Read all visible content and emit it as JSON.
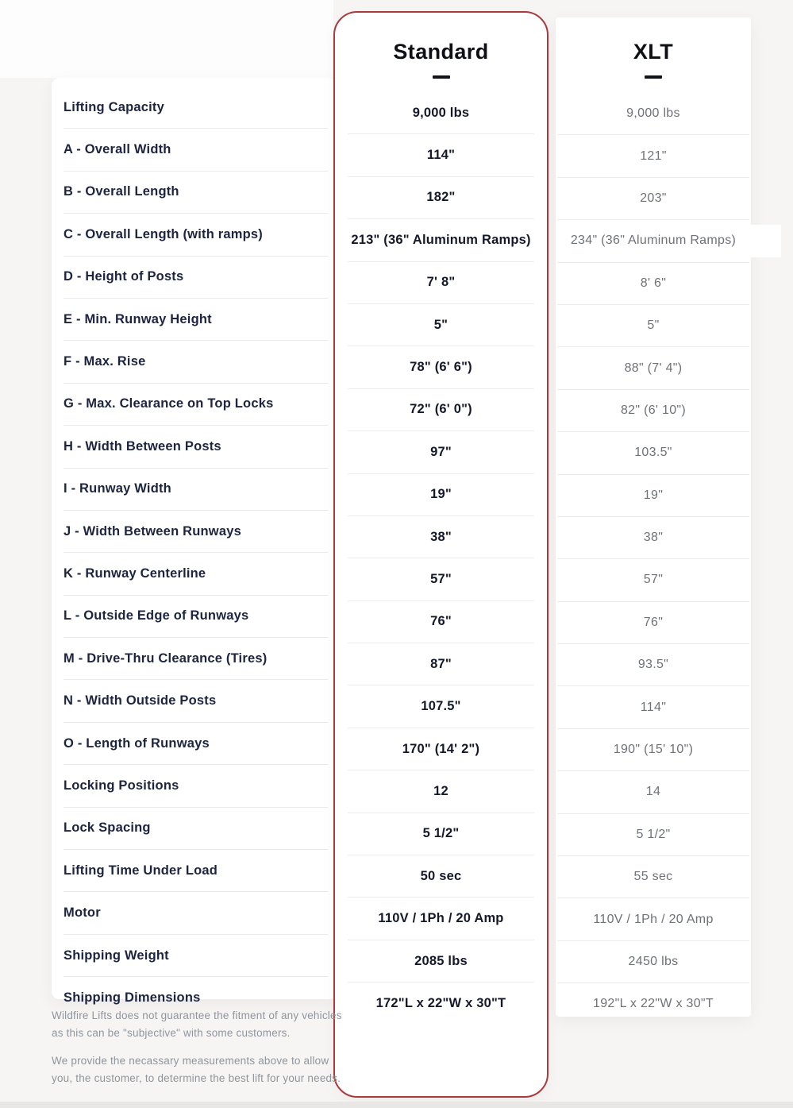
{
  "columns": {
    "standard": {
      "title": "Standard"
    },
    "xlt": {
      "title": "XLT"
    }
  },
  "rows": [
    {
      "label": "Lifting Capacity",
      "standard": "9,000 lbs",
      "xlt": "9,000 lbs"
    },
    {
      "label": "A - Overall Width",
      "standard": "114\"",
      "xlt": "121\""
    },
    {
      "label": "B - Overall Length",
      "standard": "182\"",
      "xlt": "203\""
    },
    {
      "label": "C - Overall Length (with ramps)",
      "standard": "213\" (36\" Aluminum Ramps)",
      "xlt": "234\" (36\" Aluminum Ramps)",
      "xlt_highlight": true
    },
    {
      "label": "D - Height of Posts",
      "standard": "7' 8\"",
      "xlt": "8' 6\""
    },
    {
      "label": "E - Min. Runway Height",
      "standard": "5\"",
      "xlt": "5\""
    },
    {
      "label": "F - Max. Rise",
      "standard": "78\" (6' 6\")",
      "xlt": "88\" (7' 4\")"
    },
    {
      "label": "G - Max. Clearance on Top Locks",
      "standard": "72\" (6' 0\")",
      "xlt": "82\" (6' 10\")"
    },
    {
      "label": "H - Width Between Posts",
      "standard": "97\"",
      "xlt": "103.5\""
    },
    {
      "label": "I - Runway Width",
      "standard": "19\"",
      "xlt": "19\""
    },
    {
      "label": "J - Width Between Runways",
      "standard": "38\"",
      "xlt": "38\""
    },
    {
      "label": "K - Runway Centerline",
      "standard": "57\"",
      "xlt": "57\""
    },
    {
      "label": "L - Outside Edge of Runways",
      "standard": "76\"",
      "xlt": "76\""
    },
    {
      "label": "M - Drive-Thru Clearance (Tires)",
      "standard": "87\"",
      "xlt": "93.5\""
    },
    {
      "label": "N - Width Outside Posts",
      "standard": "107.5\"",
      "xlt": "114\""
    },
    {
      "label": "O -  Length of Runways",
      "standard": "170\" (14' 2\")",
      "xlt": "190\" (15' 10\")"
    },
    {
      "label": "Locking Positions",
      "standard": "12",
      "xlt": "14"
    },
    {
      "label": "Lock Spacing",
      "standard": "5 1/2\"",
      "xlt": "5 1/2\""
    },
    {
      "label": "Lifting Time Under Load",
      "standard": "50 sec",
      "xlt": "55 sec"
    },
    {
      "label": "Motor",
      "standard": "110V / 1Ph / 20 Amp",
      "xlt": "110V / 1Ph / 20 Amp"
    },
    {
      "label": "Shipping Weight",
      "standard": "2085 lbs",
      "xlt": "2450 lbs"
    },
    {
      "label": "Shipping Dimensions",
      "standard": "172\"L x 22\"W x 30\"T",
      "xlt": "192\"L x 22\"W x 30\"T"
    }
  ],
  "footer": {
    "line1": "Wildfire Lifts does not guarantee the fitment of any vehicles as this can be \"subjective\" with some customers.",
    "line2": "We provide the necassary measurements above to allow you, the customer, to determine the best lift for your needs."
  },
  "colors": {
    "accent_border": "#ab3a3d"
  }
}
